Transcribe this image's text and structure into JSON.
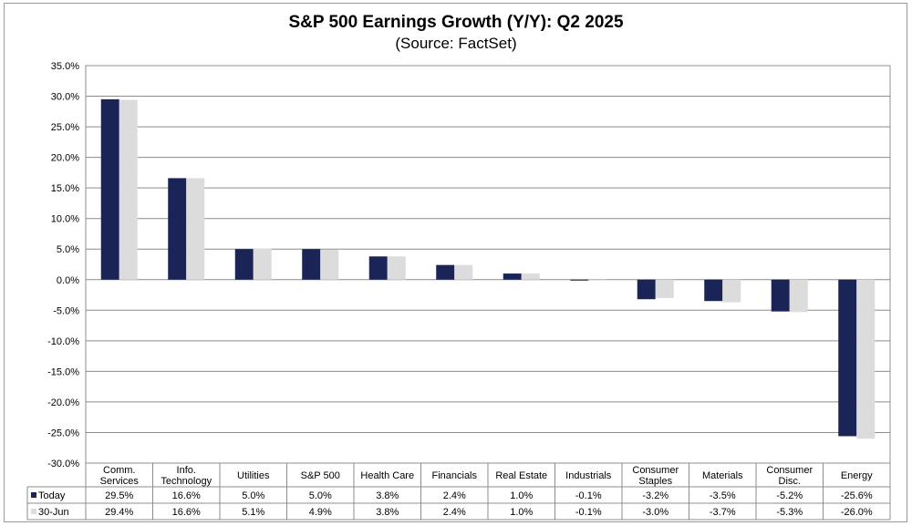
{
  "chart_data": {
    "type": "bar",
    "title": "S&P 500 Earnings Growth (Y/Y): Q2 2025",
    "subtitle": "(Source: FactSet)",
    "categories": [
      [
        "Comm.",
        "Services"
      ],
      [
        "Info.",
        "Technology"
      ],
      [
        "Utilities"
      ],
      [
        "S&P 500"
      ],
      [
        "Health Care"
      ],
      [
        "Financials"
      ],
      [
        "Real Estate"
      ],
      [
        "Industrials"
      ],
      [
        "Consumer",
        "Staples"
      ],
      [
        "Materials"
      ],
      [
        "Consumer",
        "Disc."
      ],
      [
        "Energy"
      ]
    ],
    "series": [
      {
        "name": "Today",
        "color": "#1a2456",
        "values": [
          29.5,
          16.6,
          5.0,
          5.0,
          3.8,
          2.4,
          1.0,
          -0.1,
          -3.2,
          -3.5,
          -5.2,
          -25.6
        ],
        "labels": [
          "29.5%",
          "16.6%",
          "5.0%",
          "5.0%",
          "3.8%",
          "2.4%",
          "1.0%",
          "-0.1%",
          "-3.2%",
          "-3.5%",
          "-5.2%",
          "-25.6%"
        ]
      },
      {
        "name": "30-Jun",
        "color": "#dcdcdc",
        "values": [
          29.4,
          16.6,
          5.1,
          4.9,
          3.8,
          2.4,
          1.0,
          -0.1,
          -3.0,
          -3.7,
          -5.3,
          -26.0
        ],
        "labels": [
          "29.4%",
          "16.6%",
          "5.1%",
          "4.9%",
          "3.8%",
          "2.4%",
          "1.0%",
          "-0.1%",
          "-3.0%",
          "-3.7%",
          "-5.3%",
          "-26.0%"
        ]
      }
    ],
    "ylim": [
      -30,
      35
    ],
    "yticks": [
      35,
      30,
      25,
      20,
      15,
      10,
      5,
      0,
      -5,
      -10,
      -15,
      -20,
      -25,
      -30
    ],
    "ytick_labels": [
      "35.0%",
      "30.0%",
      "25.0%",
      "20.0%",
      "15.0%",
      "10.0%",
      "5.0%",
      "0.0%",
      "-5.0%",
      "-10.0%",
      "-15.0%",
      "-20.0%",
      "-25.0%",
      "-30.0%"
    ],
    "grid": true,
    "legend": "data-table"
  }
}
